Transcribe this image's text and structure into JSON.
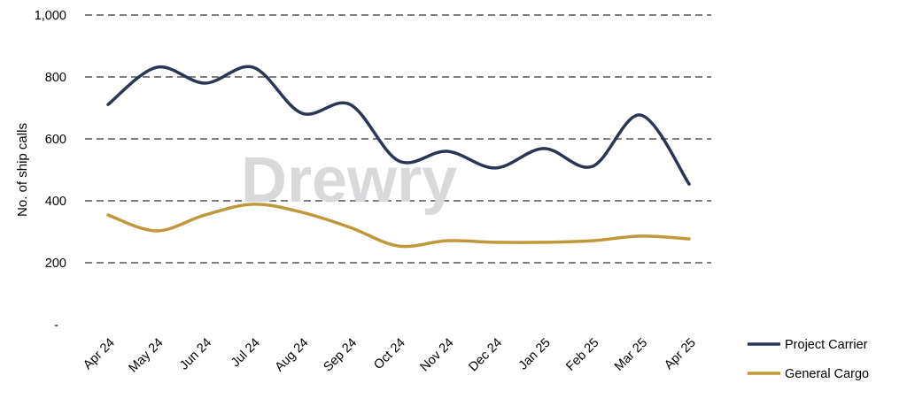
{
  "chart_data": {
    "type": "line",
    "title": "",
    "xlabel": "",
    "ylabel": "No. of ship calls",
    "ylim": [
      0,
      1000
    ],
    "yticks": [
      0,
      200,
      400,
      600,
      800,
      1000
    ],
    "ytick_labels": [
      "-",
      "200",
      "400",
      "600",
      "800",
      "1,000"
    ],
    "grid": "horizontal dashed",
    "legend": "bottom-right",
    "categories": [
      "Apr 24",
      "May 24",
      "Jun 24",
      "Jul 24",
      "Aug 24",
      "Sep 24",
      "Oct 24",
      "Nov 24",
      "Dec 24",
      "Jan 25",
      "Feb 25",
      "Mar 25",
      "Apr 25"
    ],
    "series": [
      {
        "name": "Project Carrier",
        "color": "#2b3554",
        "values": [
          711,
          831,
          780,
          831,
          683,
          711,
          529,
          560,
          506,
          569,
          511,
          677,
          454
        ]
      },
      {
        "name": "General Cargo",
        "color": "#c0983a",
        "values": [
          354,
          303,
          354,
          389,
          363,
          314,
          254,
          271,
          266,
          266,
          271,
          286,
          277
        ]
      }
    ],
    "watermark": "Drewry"
  }
}
